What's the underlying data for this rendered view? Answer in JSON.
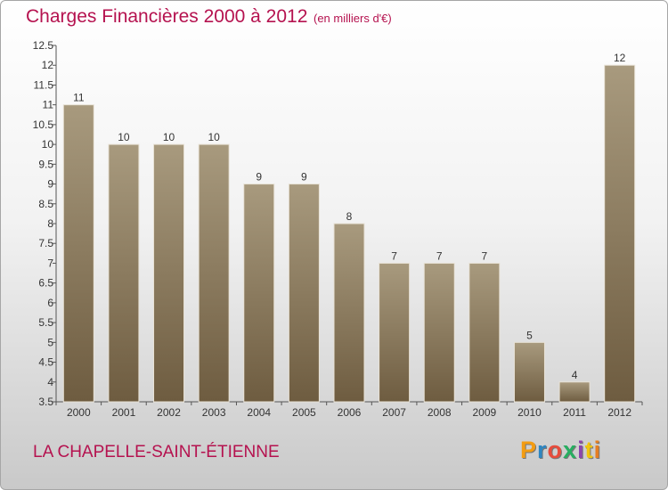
{
  "header": {
    "title": "Charges Financières 2000 à 2012",
    "subtitle": "(en milliers d'€)"
  },
  "footer": {
    "commune": "LA CHAPELLE-SAINT-ÉTIENNE",
    "logo": [
      "P",
      "r",
      "o",
      "x",
      "i",
      "t",
      "i"
    ]
  },
  "colors": {
    "title": "#b5124f",
    "bar_top": "#a89a7e",
    "bar_bottom": "#6e5c40",
    "logo": [
      "#f39c12",
      "#2e86c1",
      "#e74c3c",
      "#27ae60",
      "#8e44ad",
      "#f1c40f",
      "#e67e22"
    ]
  },
  "chart_data": {
    "type": "bar",
    "title": "Charges Financières 2000 à 2012",
    "subtitle": "(en milliers d'€)",
    "categories": [
      "2000",
      "2001",
      "2002",
      "2003",
      "2004",
      "2005",
      "2006",
      "2007",
      "2008",
      "2009",
      "2010",
      "2011",
      "2012"
    ],
    "values": [
      11,
      10,
      10,
      10,
      9,
      9,
      8,
      7,
      7,
      7,
      5,
      4,
      12
    ],
    "value_labels": [
      "11",
      "10",
      "10",
      "10",
      "9",
      "9",
      "8",
      "7",
      "7",
      "7",
      "5",
      "4",
      "12"
    ],
    "ylim": [
      3.5,
      12.5
    ],
    "yticks": [
      "3.5",
      "4",
      "4.5",
      "5",
      "5.5",
      "6",
      "6.5",
      "7",
      "7.5",
      "8",
      "8.5",
      "9",
      "9.5",
      "10",
      "10.5",
      "11",
      "11.5",
      "12",
      "12.5"
    ],
    "grid": false,
    "legend": "none"
  }
}
